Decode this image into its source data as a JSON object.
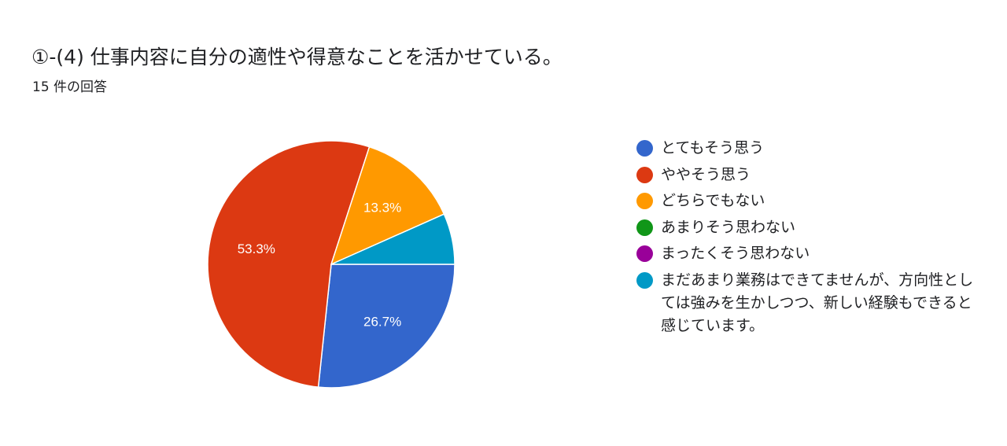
{
  "title": "①-(4)  仕事内容に自分の適性や得意なことを活かせている。",
  "subtitle": "15 件の回答",
  "chart_data": {
    "type": "pie",
    "total_responses": 15,
    "legend_position": "right",
    "slices": [
      {
        "label": "とてもそう思う",
        "count": 4,
        "percent": 26.7,
        "percent_label": "26.7%",
        "color": "#3366cc"
      },
      {
        "label": "ややそう思う",
        "count": 8,
        "percent": 53.3,
        "percent_label": "53.3%",
        "color": "#dc3912"
      },
      {
        "label": "どちらでもない",
        "count": 2,
        "percent": 13.3,
        "percent_label": "13.3%",
        "color": "#ff9900"
      },
      {
        "label": "あまりそう思わない",
        "count": 0,
        "percent": 0,
        "percent_label": "",
        "color": "#109618"
      },
      {
        "label": "まったくそう思わない",
        "count": 0,
        "percent": 0,
        "percent_label": "",
        "color": "#990099"
      },
      {
        "label": "まだあまり業務はできてませんが、方向性としては強みを生かしつつ、新しい経験もできると感じています。",
        "count": 1,
        "percent": 6.7,
        "percent_label": "",
        "color": "#0099c6"
      }
    ]
  }
}
